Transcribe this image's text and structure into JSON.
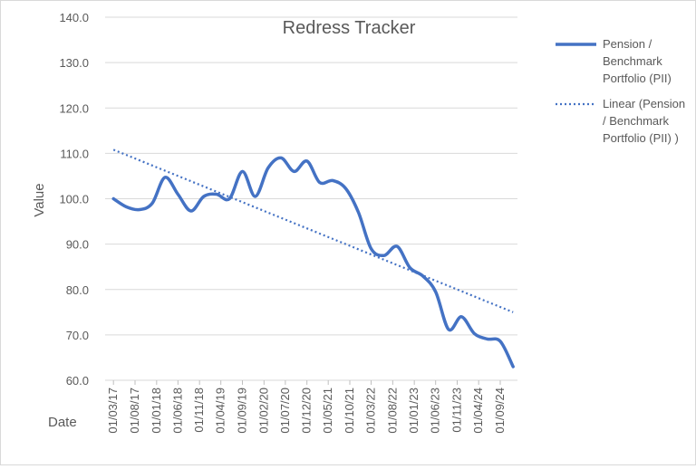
{
  "chart_data": {
    "type": "line",
    "title": "Redress Tracker",
    "xlabel": "Date",
    "ylabel": "Value",
    "ylim": [
      60,
      140
    ],
    "ytick_labels": [
      "60.0",
      "70.0",
      "80.0",
      "90.0",
      "100.0",
      "110.0",
      "120.0",
      "130.0",
      "140.0"
    ],
    "x_tick_labels": [
      "01/03/17",
      "01/08/17",
      "01/01/18",
      "01/06/18",
      "01/11/18",
      "01/04/19",
      "01/09/19",
      "01/02/20",
      "01/07/20",
      "01/12/20",
      "01/05/21",
      "01/10/21",
      "01/03/22",
      "01/08/22",
      "01/01/23",
      "01/06/23",
      "01/11/23",
      "01/04/24",
      "01/09/24"
    ],
    "grid": "horizontal",
    "legend_position": "right",
    "series": [
      {
        "name": "Pension / Benchmark Portfolio (PII)",
        "style": "solid",
        "color": "#4472c4",
        "points": [
          [
            "2017-03-01",
            100.0
          ],
          [
            "2017-06-01",
            98.2
          ],
          [
            "2017-09-01",
            97.6
          ],
          [
            "2017-12-01",
            99.0
          ],
          [
            "2018-03-01",
            104.7
          ],
          [
            "2018-06-01",
            101.0
          ],
          [
            "2018-09-01",
            97.3
          ],
          [
            "2018-12-01",
            100.5
          ],
          [
            "2019-03-01",
            101.0
          ],
          [
            "2019-06-01",
            100.0
          ],
          [
            "2019-09-01",
            106.0
          ],
          [
            "2019-12-01",
            100.5
          ],
          [
            "2020-03-01",
            106.8
          ],
          [
            "2020-06-01",
            109.0
          ],
          [
            "2020-09-01",
            106.0
          ],
          [
            "2020-12-01",
            108.3
          ],
          [
            "2021-03-01",
            103.6
          ],
          [
            "2021-06-01",
            104.0
          ],
          [
            "2021-09-01",
            102.3
          ],
          [
            "2021-12-01",
            97.0
          ],
          [
            "2022-03-01",
            89.0
          ],
          [
            "2022-06-01",
            87.5
          ],
          [
            "2022-09-01",
            89.5
          ],
          [
            "2022-12-01",
            84.8
          ],
          [
            "2023-03-01",
            83.0
          ],
          [
            "2023-06-01",
            79.5
          ],
          [
            "2023-09-01",
            71.2
          ],
          [
            "2023-12-01",
            74.0
          ],
          [
            "2024-03-01",
            70.3
          ],
          [
            "2024-06-01",
            69.1
          ],
          [
            "2024-09-01",
            68.6
          ],
          [
            "2024-12-01",
            63.0
          ]
        ]
      },
      {
        "name": "Linear (Pension / Benchmark Portfolio (PII) )",
        "style": "dotted",
        "color": "#4472c4",
        "points": [
          [
            "2017-03-01",
            110.8
          ],
          [
            "2024-12-01",
            75.0
          ]
        ]
      }
    ]
  }
}
